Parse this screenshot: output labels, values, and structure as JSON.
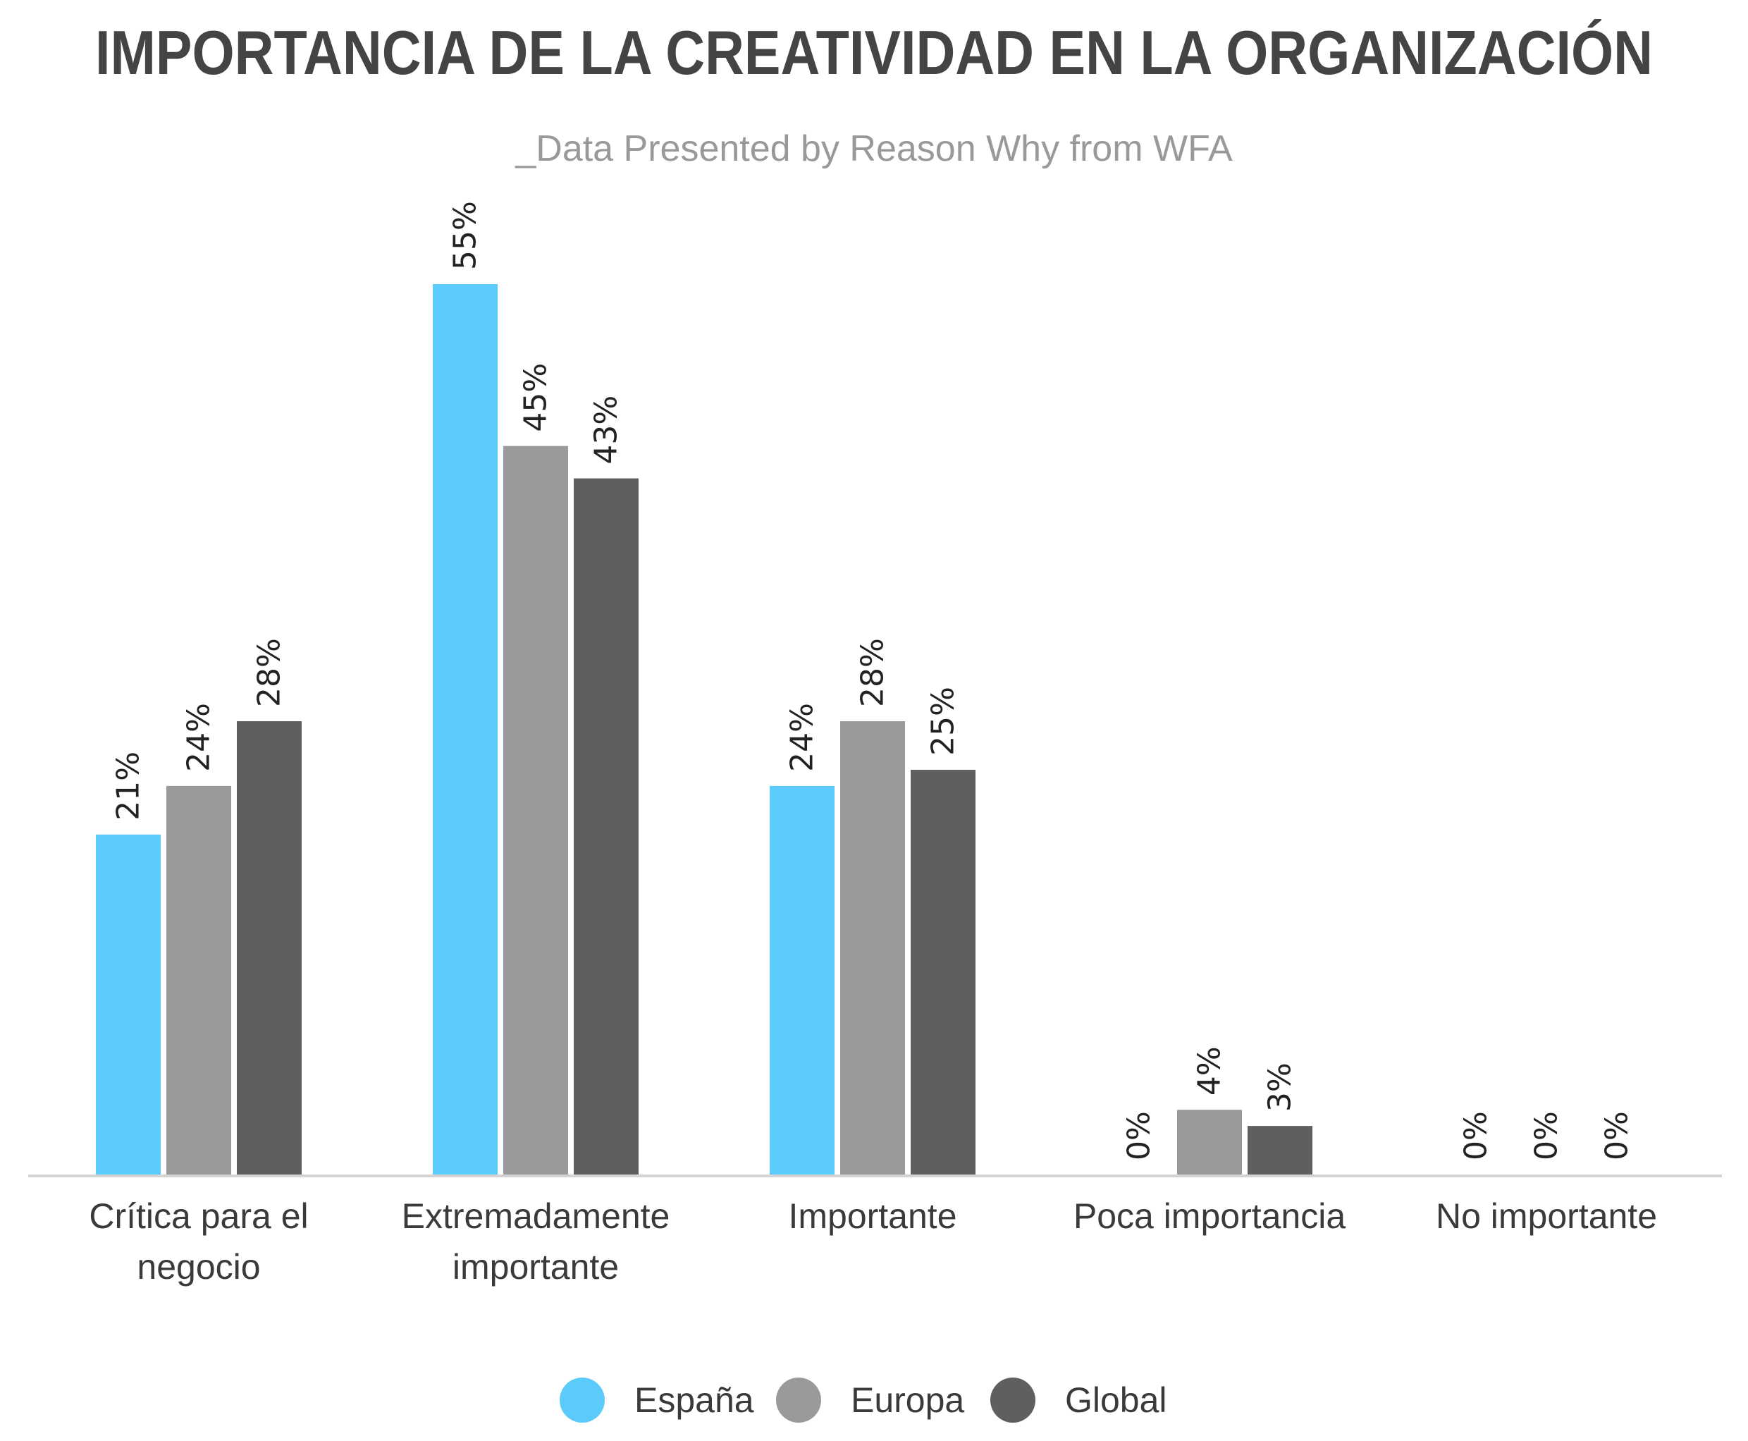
{
  "chart_data": {
    "type": "bar",
    "title": "IMPORTANCIA DE LA CREATIVIDAD EN LA ORGANIZACIÓN",
    "subtitle": "_Data Presented by Reason Why from WFA",
    "categories": [
      [
        "Crítica para el",
        "negocio"
      ],
      [
        "Extremadamente",
        "importante"
      ],
      [
        "Importante"
      ],
      [
        "Poca importancia"
      ],
      [
        "No importante"
      ]
    ],
    "series": [
      {
        "name": "España",
        "color": "#5BCBFC",
        "values": [
          21,
          55,
          24,
          0,
          0
        ]
      },
      {
        "name": "Europa",
        "color": "#9A9A9A",
        "values": [
          24,
          45,
          28,
          4,
          0
        ]
      },
      {
        "name": "Global",
        "color": "#5F5F5F",
        "values": [
          28,
          43,
          25,
          3,
          0
        ]
      }
    ],
    "value_suffix": "%",
    "ylim": [
      0,
      55
    ],
    "grid": false,
    "legend_position": "bottom-center",
    "colors": {
      "title": "#444444",
      "subtitle": "#999999",
      "axis": "#D3D3D3",
      "label": "#3A3A3A",
      "value_label": "#222222"
    }
  }
}
